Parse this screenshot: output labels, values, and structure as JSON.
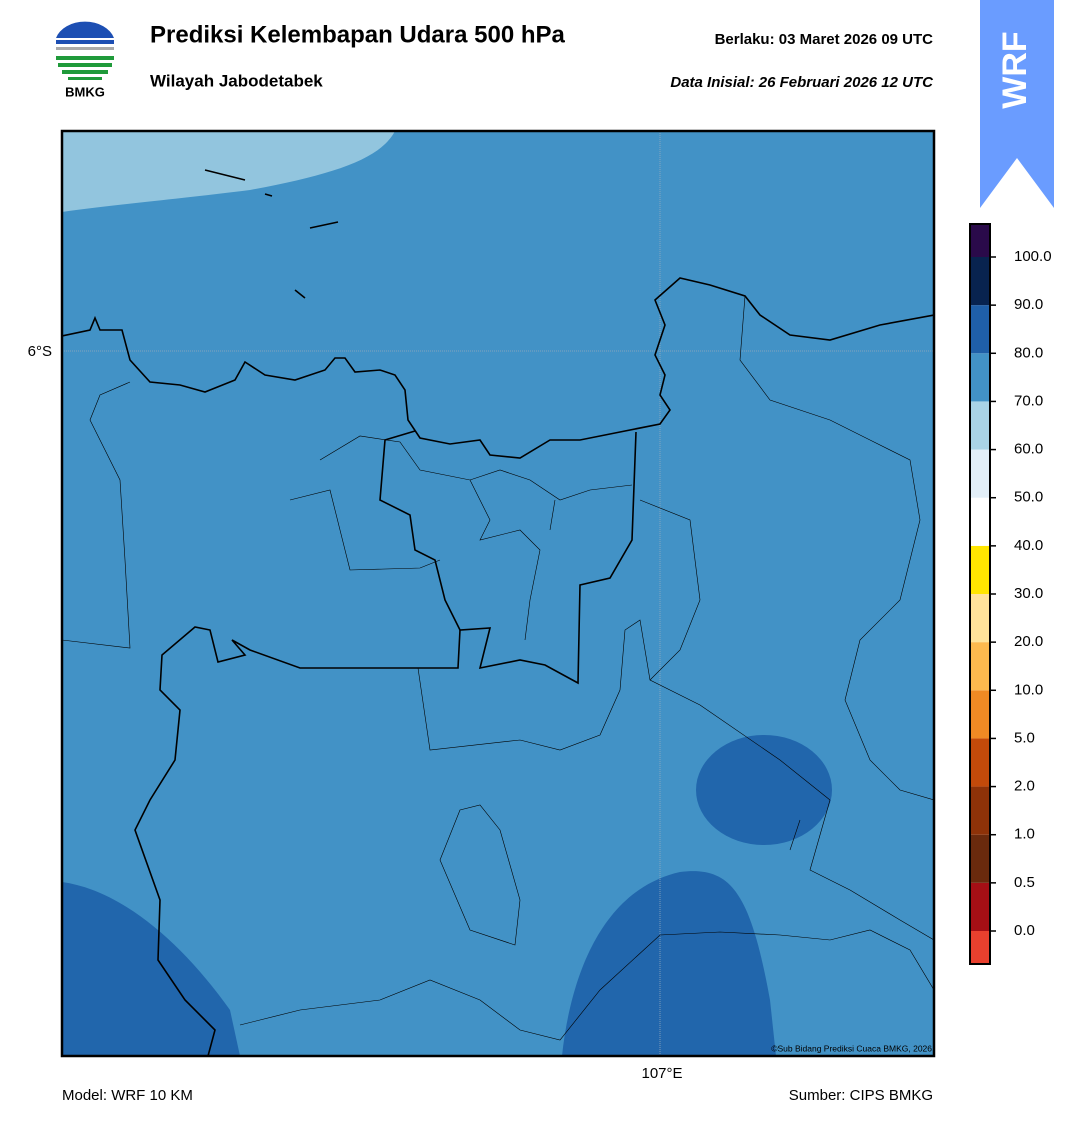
{
  "header": {
    "logo_text": "BMKG",
    "title": "Prediksi Kelembapan Udara 500 hPa",
    "subtitle": "Wilayah Jabodetabek",
    "valid": "Berlaku:  03 Maret 2026 09 UTC",
    "init": "Data Inisial:  26 Februari 2026 12 UTC",
    "badge": "WRF"
  },
  "map": {
    "lat_label": "6°S",
    "lon_label": "107°E",
    "credit": "©Sub Bidang Prediksi Cuaca BMKG, 2026"
  },
  "colorbar": {
    "colors": [
      "#e8402e",
      "#a50f15",
      "#6a2a0d",
      "#8e3208",
      "#c44a0a",
      "#f08a24",
      "#fdb94e",
      "#ffe39a",
      "#ffe600",
      "#ffffff",
      "#e3eff8",
      "#a9d3e6",
      "#4292c6",
      "#1f5fa8",
      "#08234f",
      "#2a0a4a"
    ],
    "labels": [
      "0.0",
      "0.5",
      "1.0",
      "2.0",
      "5.0",
      "10.0",
      "20.0",
      "30.0",
      "40.0",
      "50.0",
      "60.0",
      "70.0",
      "80.0",
      "90.0",
      "100.0"
    ]
  },
  "footer": {
    "model": "Model: WRF 10 KM",
    "source": "Sumber: CIPS BMKG"
  }
}
